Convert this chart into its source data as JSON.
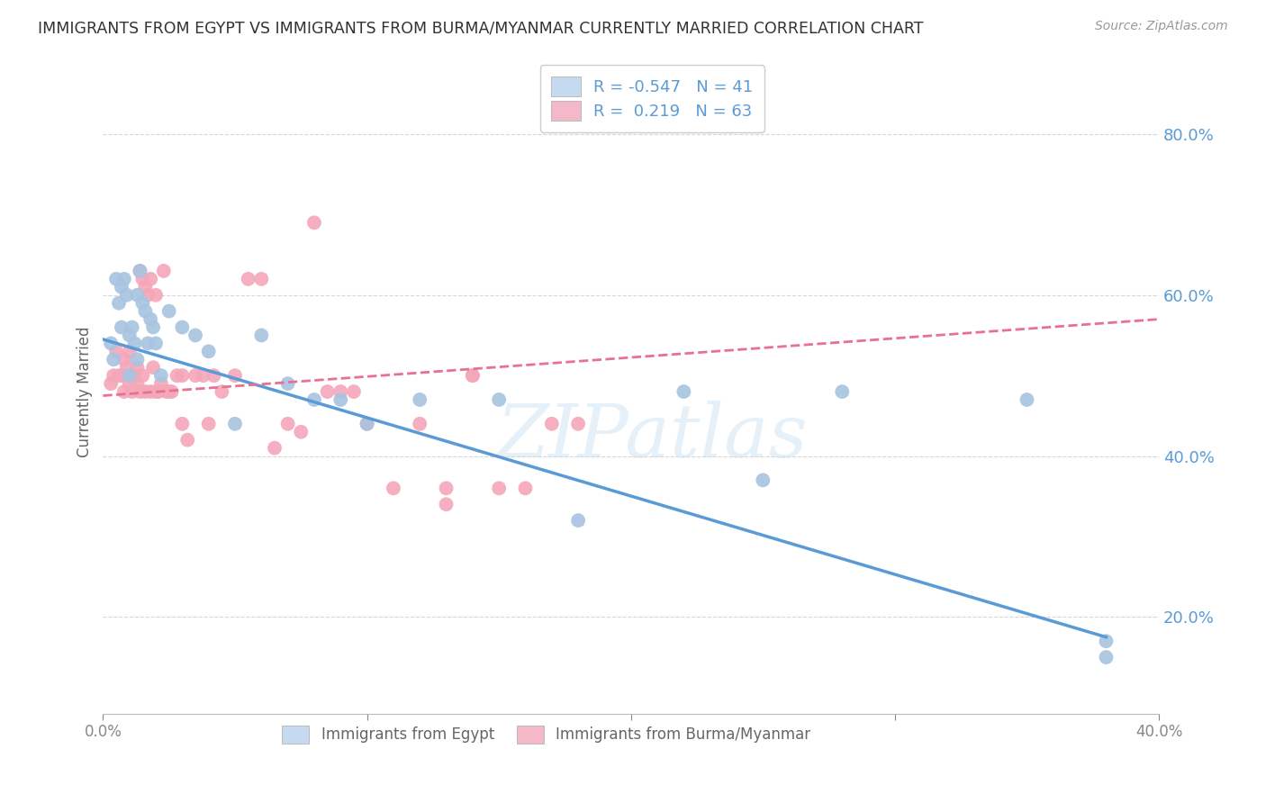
{
  "title": "IMMIGRANTS FROM EGYPT VS IMMIGRANTS FROM BURMA/MYANMAR CURRENTLY MARRIED CORRELATION CHART",
  "source": "Source: ZipAtlas.com",
  "ylabel": "Currently Married",
  "xlim": [
    0.0,
    0.4
  ],
  "ylim": [
    0.08,
    0.88
  ],
  "yticks": [
    0.2,
    0.4,
    0.6,
    0.8
  ],
  "ytick_labels": [
    "20.0%",
    "40.0%",
    "60.0%",
    "80.0%"
  ],
  "xticks": [
    0.0,
    0.1,
    0.2,
    0.3,
    0.4
  ],
  "xtick_labels": [
    "0.0%",
    "",
    "",
    "",
    "40.0%"
  ],
  "egypt_R": -0.547,
  "egypt_N": 41,
  "burma_R": 0.219,
  "burma_N": 63,
  "egypt_color": "#a8c4e0",
  "burma_color": "#f4a7b9",
  "egypt_line_color": "#5b9bd5",
  "burma_line_color": "#e87090",
  "axis_color": "#5b9bd5",
  "legend_box_egypt": "#c5d9f1",
  "legend_box_burma": "#f4b8c8",
  "background_color": "#ffffff",
  "grid_color": "#cccccc",
  "watermark": "ZIPatlas",
  "egypt_x": [
    0.003,
    0.004,
    0.005,
    0.006,
    0.007,
    0.007,
    0.008,
    0.009,
    0.01,
    0.01,
    0.011,
    0.012,
    0.013,
    0.013,
    0.014,
    0.015,
    0.016,
    0.017,
    0.018,
    0.019,
    0.02,
    0.022,
    0.025,
    0.03,
    0.035,
    0.04,
    0.05,
    0.06,
    0.07,
    0.08,
    0.09,
    0.1,
    0.12,
    0.15,
    0.18,
    0.22,
    0.25,
    0.28,
    0.35,
    0.38,
    0.38
  ],
  "egypt_y": [
    0.54,
    0.52,
    0.62,
    0.59,
    0.56,
    0.61,
    0.62,
    0.6,
    0.55,
    0.5,
    0.56,
    0.54,
    0.52,
    0.6,
    0.63,
    0.59,
    0.58,
    0.54,
    0.57,
    0.56,
    0.54,
    0.5,
    0.58,
    0.56,
    0.55,
    0.53,
    0.44,
    0.55,
    0.49,
    0.47,
    0.47,
    0.44,
    0.47,
    0.47,
    0.32,
    0.48,
    0.37,
    0.48,
    0.47,
    0.17,
    0.15
  ],
  "burma_x": [
    0.003,
    0.004,
    0.005,
    0.006,
    0.007,
    0.008,
    0.008,
    0.009,
    0.01,
    0.01,
    0.011,
    0.011,
    0.012,
    0.013,
    0.013,
    0.014,
    0.014,
    0.015,
    0.015,
    0.016,
    0.016,
    0.017,
    0.018,
    0.018,
    0.019,
    0.02,
    0.02,
    0.021,
    0.022,
    0.023,
    0.024,
    0.025,
    0.026,
    0.028,
    0.03,
    0.03,
    0.032,
    0.035,
    0.038,
    0.04,
    0.042,
    0.045,
    0.05,
    0.055,
    0.06,
    0.065,
    0.07,
    0.075,
    0.08,
    0.085,
    0.09,
    0.095,
    0.1,
    0.11,
    0.12,
    0.13,
    0.14,
    0.15,
    0.16,
    0.17,
    0.18,
    0.13,
    0.14
  ],
  "burma_y": [
    0.49,
    0.5,
    0.53,
    0.5,
    0.5,
    0.52,
    0.48,
    0.51,
    0.53,
    0.49,
    0.5,
    0.48,
    0.5,
    0.51,
    0.49,
    0.63,
    0.48,
    0.62,
    0.5,
    0.61,
    0.48,
    0.6,
    0.62,
    0.48,
    0.51,
    0.6,
    0.48,
    0.48,
    0.49,
    0.63,
    0.48,
    0.48,
    0.48,
    0.5,
    0.5,
    0.44,
    0.42,
    0.5,
    0.5,
    0.44,
    0.5,
    0.48,
    0.5,
    0.62,
    0.62,
    0.41,
    0.44,
    0.43,
    0.69,
    0.48,
    0.48,
    0.48,
    0.44,
    0.36,
    0.44,
    0.36,
    0.5,
    0.36,
    0.36,
    0.44,
    0.44,
    0.34,
    0.5
  ],
  "egypt_line_x0": 0.0,
  "egypt_line_y0": 0.545,
  "egypt_line_x1": 0.38,
  "egypt_line_y1": 0.175,
  "burma_line_x0": 0.0,
  "burma_line_y0": 0.475,
  "burma_line_x1": 0.4,
  "burma_line_y1": 0.57
}
